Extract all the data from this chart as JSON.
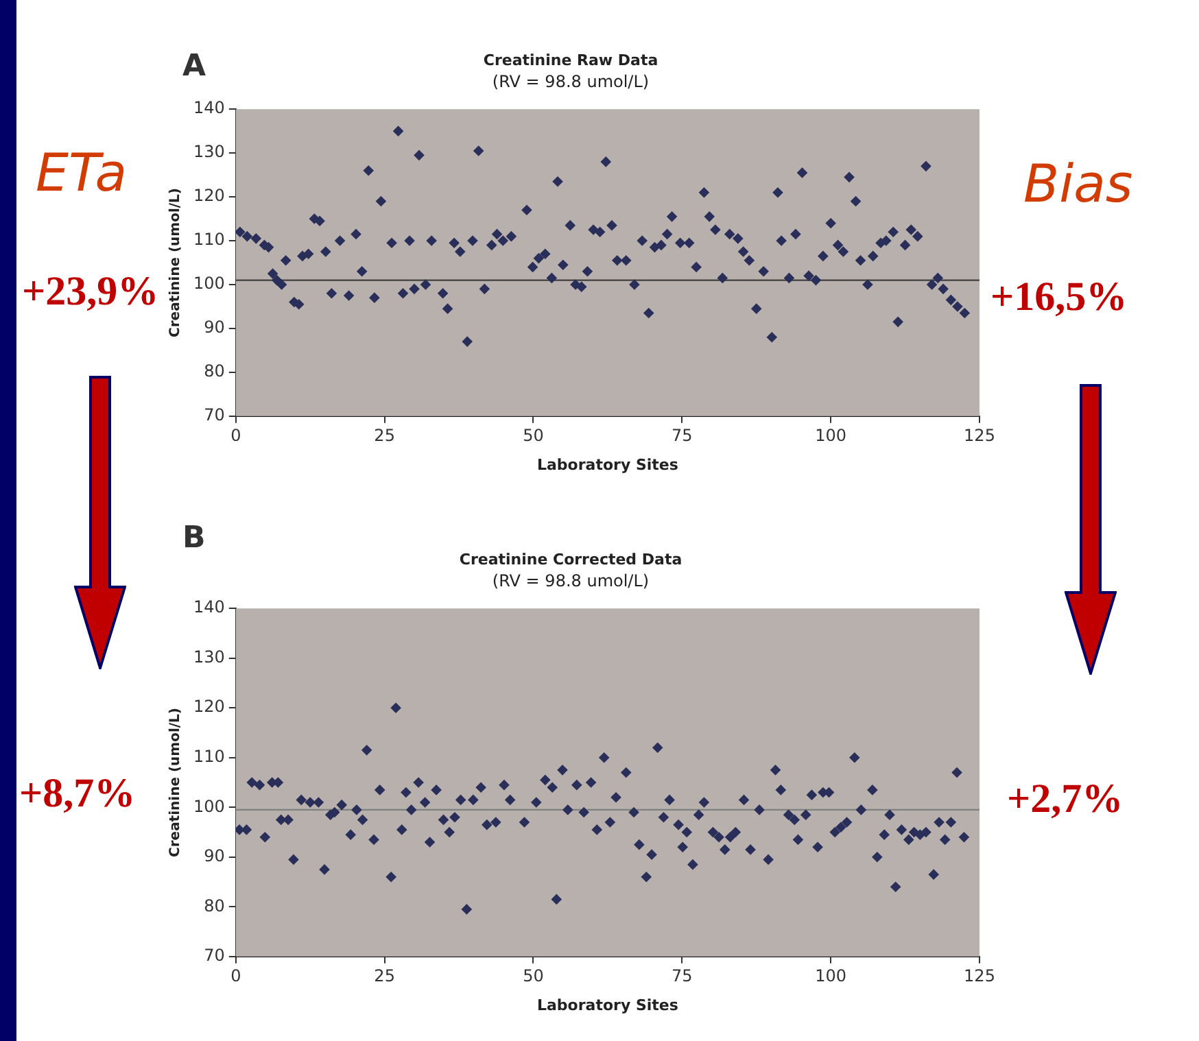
{
  "chart_data": [
    {
      "type": "scatter",
      "title": "Creatinine Raw Data",
      "subtitle": "(RV = 98.8 umol/L)",
      "xlabel": "Laboratory Sites",
      "ylabel": "Creatinine (umol/L)",
      "xlim": [
        0,
        125
      ],
      "xticks": [
        0,
        25,
        50,
        75,
        100,
        125
      ],
      "ylim": [
        70,
        140
      ],
      "yticks": [
        70,
        80,
        90,
        100,
        110,
        120,
        130,
        140
      ],
      "marker": "diamond",
      "ref_lines": [
        {
          "axis": "y",
          "value": 101,
          "color": "#404040"
        }
      ],
      "annotations": [
        "A",
        "ETa",
        "+23,9%",
        "Bias",
        "+16,5%"
      ],
      "series": [
        {
          "color": "#2a2f5a",
          "x": [
            0.7,
            1.9,
            3.4,
            4.8,
            5.5,
            6.2,
            6.9,
            7.7,
            8.4,
            9.8,
            10.6,
            11.2,
            12.2,
            13.2,
            14.1,
            15.1,
            16.1,
            17.5,
            19,
            20.2,
            21.2,
            22.3,
            23.3,
            24.4,
            26.2,
            27.3,
            28.1,
            29.2,
            30,
            30.8,
            31.9,
            32.9,
            34.8,
            35.6,
            36.7,
            37.7,
            38.9,
            39.8,
            40.8,
            41.8,
            43,
            43.9,
            44.9,
            46.3,
            48.9,
            49.9,
            50.9,
            52,
            53.1,
            54.1,
            55,
            56.2,
            57.1,
            58.1,
            59.1,
            60.1,
            61.2,
            62.2,
            63.2,
            64.1,
            65.6,
            67,
            68.3,
            69.4,
            70.4,
            71.5,
            72.5,
            73.3,
            74.7,
            76.2,
            77.4,
            78.7,
            79.6,
            80.6,
            81.8,
            83,
            84.4,
            85.3,
            86.3,
            87.5,
            88.7,
            90.1,
            91.1,
            91.7,
            93,
            94.1,
            95.2,
            96.3,
            97.5,
            98.7,
            100,
            101.2,
            102.1,
            103.1,
            104.2,
            105,
            106.2,
            107.1,
            108.4,
            109.3,
            110.5,
            111.3,
            112.5,
            113.5,
            114.6,
            116,
            117,
            118,
            118.9,
            120.2,
            121.3,
            122.5
          ],
          "values": [
            112,
            111,
            110.5,
            109,
            108.5,
            102.5,
            101,
            100,
            105.5,
            96,
            95.5,
            106.5,
            107,
            115,
            114.5,
            107.5,
            98,
            110,
            97.5,
            111.5,
            103,
            126,
            97,
            119,
            109.5,
            135,
            98,
            110,
            99,
            129.5,
            100,
            110,
            98,
            94.5,
            109.5,
            107.5,
            87,
            110,
            130.5,
            99,
            109,
            111.5,
            110,
            111,
            117,
            104,
            106,
            107,
            101.5,
            123.5,
            104.5,
            113.5,
            100,
            99.5,
            103,
            112.5,
            112,
            128,
            113.5,
            105.5,
            105.5,
            100,
            110,
            93.5,
            108.5,
            109,
            111.5,
            115.5,
            109.5,
            109.5,
            104,
            121,
            115.5,
            112.5,
            101.5,
            111.5,
            110.5,
            107.5,
            105.5,
            94.5,
            103,
            88,
            121,
            110,
            101.5,
            111.5,
            125.5,
            102,
            101,
            106.5,
            114,
            109,
            107.5,
            124.5,
            119,
            105.5,
            100,
            106.5,
            109.5,
            110,
            112,
            91.5,
            109,
            112.5,
            111,
            127,
            100,
            101.5,
            99,
            96.5,
            95,
            93.5
          ]
        }
      ]
    },
    {
      "type": "scatter",
      "title": "Creatinine Corrected Data",
      "subtitle": "(RV = 98.8 umol/L)",
      "xlabel": "Laboratory Sites",
      "ylabel": "Creatinine (umol/L)",
      "xlim": [
        0,
        125
      ],
      "xticks": [
        0,
        25,
        50,
        75,
        100,
        125
      ],
      "ylim": [
        70,
        140
      ],
      "yticks": [
        70,
        80,
        90,
        100,
        110,
        120,
        130,
        140
      ],
      "marker": "diamond",
      "ref_lines": [
        {
          "axis": "y",
          "value": 99.5,
          "color": "#808080"
        }
      ],
      "annotations": [
        "B",
        "+8,7%",
        "+2,7%"
      ],
      "series": [
        {
          "color": "#2a2f5a",
          "x": [
            0.6,
            1.8,
            2.7,
            4,
            4.9,
            6.1,
            7.1,
            7.6,
            8.8,
            9.7,
            11,
            12.5,
            13.9,
            14.9,
            15.9,
            16.6,
            17.8,
            19.3,
            20.3,
            21.3,
            22,
            23.2,
            24.2,
            26.1,
            26.9,
            27.9,
            28.6,
            29.5,
            30.7,
            31.8,
            32.6,
            33.7,
            34.9,
            35.9,
            36.8,
            37.8,
            38.8,
            39.9,
            41.2,
            42.2,
            43.7,
            45.1,
            46.1,
            48.5,
            50.5,
            52,
            53.2,
            53.9,
            54.9,
            55.8,
            57.3,
            58.5,
            59.7,
            60.7,
            61.9,
            62.9,
            63.9,
            65.6,
            66.9,
            67.8,
            69,
            69.9,
            70.9,
            71.9,
            72.9,
            74.4,
            75.1,
            75.8,
            76.8,
            77.8,
            78.7,
            80.2,
            81.2,
            82.2,
            83.1,
            84,
            85.4,
            86.5,
            88,
            89.5,
            90.7,
            91.6,
            92.9,
            93.9,
            94.5,
            95.8,
            96.8,
            97.8,
            98.7,
            99.7,
            100.7,
            101.7,
            102.7,
            104,
            105.1,
            107,
            107.8,
            109,
            109.9,
            110.9,
            111.9,
            113.1,
            114,
            115,
            116,
            117.3,
            118.2,
            119.2,
            120.2,
            121.2,
            122.4
          ],
          "values": [
            95.5,
            95.5,
            105,
            104.5,
            94,
            105,
            105,
            97.5,
            97.5,
            89.5,
            101.5,
            101,
            101,
            87.5,
            98.5,
            99,
            100.5,
            94.5,
            99.5,
            97.5,
            111.5,
            93.5,
            103.5,
            86,
            120,
            95.5,
            103,
            99.5,
            105,
            101,
            93,
            103.5,
            97.5,
            95,
            98,
            101.5,
            79.5,
            101.5,
            104,
            96.5,
            97,
            104.5,
            101.5,
            97,
            101,
            105.5,
            104,
            81.5,
            107.5,
            99.5,
            104.5,
            99,
            105,
            95.5,
            110,
            97,
            102,
            107,
            99,
            92.5,
            86,
            90.5,
            112,
            98,
            101.5,
            96.5,
            92,
            95,
            88.5,
            98.5,
            101,
            95,
            94,
            91.5,
            94,
            95,
            101.5,
            91.5,
            99.5,
            89.5,
            107.5,
            103.5,
            98.5,
            97.5,
            93.5,
            98.5,
            102.5,
            92,
            103,
            103,
            95,
            96,
            97,
            110,
            99.5,
            103.5,
            90,
            94.5,
            98.5,
            84,
            95.5,
            93.5,
            95,
            94.5,
            95,
            86.5,
            97,
            93.5,
            97,
            107,
            94
          ]
        }
      ]
    }
  ]
}
